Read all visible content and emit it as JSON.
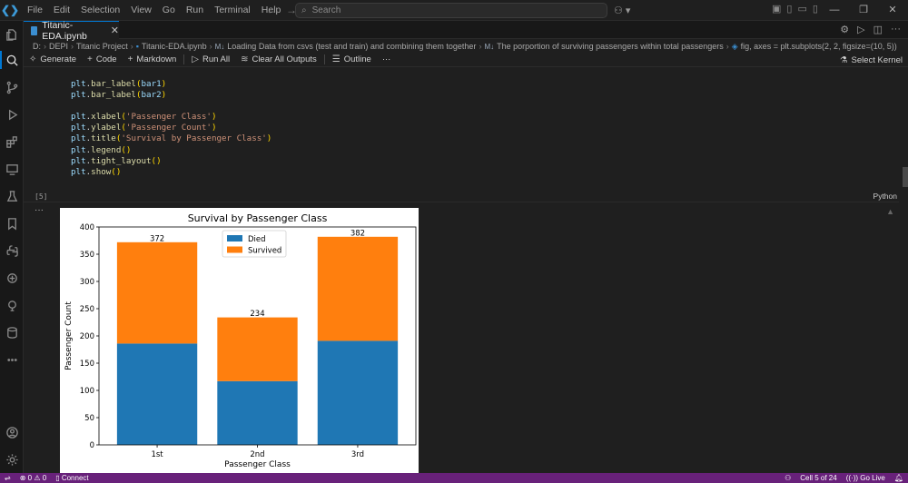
{
  "titlebar": {
    "menu": [
      "File",
      "Edit",
      "Selection",
      "View",
      "Go",
      "Run",
      "Terminal",
      "Help"
    ],
    "search_placeholder": "Search"
  },
  "tab": {
    "label": "Titanic-EDA.ipynb"
  },
  "breadcrumb": {
    "items": [
      "D:",
      "DEPI",
      "Titanic Project",
      "Titanic-EDA.ipynb"
    ],
    "section1": "Loading Data from csvs (test and train) and combining them together",
    "section2": "The porportion of surviving passengers within total passengers",
    "symbol": "fig, axes = plt.subplots(2, 2, figsize=(10, 5))"
  },
  "toolbar": {
    "generate": "Generate",
    "code": "Code",
    "markdown": "Markdown",
    "run_all": "Run All",
    "clear_all": "Clear All Outputs",
    "outline": "Outline",
    "more": "···",
    "select_kernel": "Select Kernel"
  },
  "cell": {
    "code": [
      [
        [
          "var",
          "plt"
        ],
        [
          "p",
          "."
        ],
        [
          "fn",
          "bar_label"
        ],
        [
          "br",
          "("
        ],
        [
          "var",
          "bar1"
        ],
        [
          "br",
          ")"
        ]
      ],
      [
        [
          "var",
          "plt"
        ],
        [
          "p",
          "."
        ],
        [
          "fn",
          "bar_label"
        ],
        [
          "br",
          "("
        ],
        [
          "var",
          "bar2"
        ],
        [
          "br",
          ")"
        ]
      ],
      [],
      [
        [
          "var",
          "plt"
        ],
        [
          "p",
          "."
        ],
        [
          "fn",
          "xlabel"
        ],
        [
          "br",
          "("
        ],
        [
          "str",
          "'Passenger Class'"
        ],
        [
          "br",
          ")"
        ]
      ],
      [
        [
          "var",
          "plt"
        ],
        [
          "p",
          "."
        ],
        [
          "fn",
          "ylabel"
        ],
        [
          "br",
          "("
        ],
        [
          "str",
          "'Passenger Count'"
        ],
        [
          "br",
          ")"
        ]
      ],
      [
        [
          "var",
          "plt"
        ],
        [
          "p",
          "."
        ],
        [
          "fn",
          "title"
        ],
        [
          "br",
          "("
        ],
        [
          "str",
          "'Survival by Passenger Class'"
        ],
        [
          "br",
          ")"
        ]
      ],
      [
        [
          "var",
          "plt"
        ],
        [
          "p",
          "."
        ],
        [
          "fn",
          "legend"
        ],
        [
          "br",
          "()"
        ]
      ],
      [
        [
          "var",
          "plt"
        ],
        [
          "p",
          "."
        ],
        [
          "fn",
          "tight_layout"
        ],
        [
          "br",
          "()"
        ]
      ],
      [
        [
          "var",
          "plt"
        ],
        [
          "p",
          "."
        ],
        [
          "fn",
          "show"
        ],
        [
          "br",
          "()"
        ]
      ]
    ],
    "execution_count": "[5]",
    "language": "Python",
    "output_menu": "···"
  },
  "statusbar": {
    "errors": "0",
    "warnings": "0",
    "connect": "Connect",
    "cell_position": "Cell 5 of 24",
    "go_live": "Go Live"
  },
  "chart_data": {
    "type": "bar",
    "stacked": true,
    "title": "Survival by Passenger Class",
    "xlabel": "Passenger Class",
    "ylabel": "Passenger Count",
    "categories": [
      "1st",
      "2nd",
      "3rd"
    ],
    "series": [
      {
        "name": "Died",
        "values": [
          186,
          117,
          191
        ],
        "color": "#1f77b4"
      },
      {
        "name": "Survived",
        "values": [
          186,
          117,
          191
        ],
        "color": "#ff7f0e"
      }
    ],
    "bar_labels": {
      "Died": [
        "186",
        "117",
        "191"
      ],
      "Survived": [
        "372",
        "234",
        "382"
      ]
    },
    "ylim": [
      0,
      400
    ],
    "yticks": [
      0,
      50,
      100,
      150,
      200,
      250,
      300,
      350,
      400
    ],
    "legend_position": "top-center"
  }
}
